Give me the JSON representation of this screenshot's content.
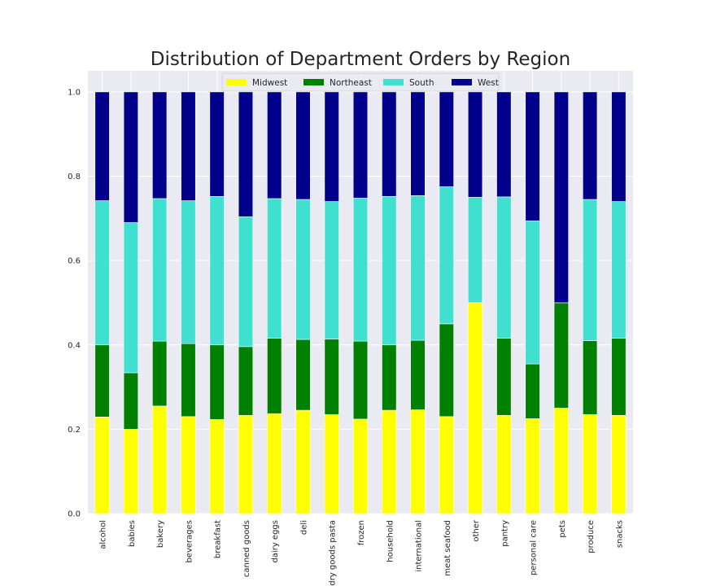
{
  "chart_data": {
    "type": "bar",
    "stacked": true,
    "title": "Distribution of Department Orders by Region",
    "xlabel": "",
    "ylabel": "",
    "ylim": [
      0,
      1.05
    ],
    "yticks": [
      "0.0",
      "0.2",
      "0.4",
      "0.6",
      "0.8",
      "1.0"
    ],
    "grid": true,
    "legend_position": "top-center",
    "categories": [
      "alcohol",
      "babies",
      "bakery",
      "beverages",
      "breakfast",
      "canned goods",
      "dairy eggs",
      "deli",
      "dry goods pasta",
      "frozen",
      "household",
      "international",
      "meat seafood",
      "other",
      "pantry",
      "personal care",
      "pets",
      "produce",
      "snacks"
    ],
    "series": [
      {
        "name": "Midwest",
        "color": "#ffff00",
        "values": [
          0.229,
          0.2,
          0.255,
          0.23,
          0.223,
          0.233,
          0.237,
          0.245,
          0.235,
          0.224,
          0.245,
          0.246,
          0.23,
          0.5,
          0.233,
          0.225,
          0.25,
          0.235,
          0.233
        ]
      },
      {
        "name": "Northeast",
        "color": "#008000",
        "values": [
          0.171,
          0.134,
          0.154,
          0.173,
          0.177,
          0.163,
          0.179,
          0.168,
          0.179,
          0.185,
          0.155,
          0.165,
          0.22,
          0.0,
          0.183,
          0.13,
          0.25,
          0.175,
          0.183
        ]
      },
      {
        "name": "South",
        "color": "#40e0d0",
        "values": [
          0.342,
          0.356,
          0.338,
          0.339,
          0.352,
          0.308,
          0.331,
          0.332,
          0.326,
          0.339,
          0.352,
          0.343,
          0.325,
          0.25,
          0.335,
          0.339,
          0.0,
          0.335,
          0.324
        ]
      },
      {
        "name": "West",
        "color": "#00008b",
        "values": [
          0.258,
          0.31,
          0.253,
          0.258,
          0.248,
          0.296,
          0.253,
          0.255,
          0.26,
          0.252,
          0.248,
          0.246,
          0.225,
          0.25,
          0.249,
          0.306,
          0.5,
          0.255,
          0.26
        ]
      }
    ]
  }
}
